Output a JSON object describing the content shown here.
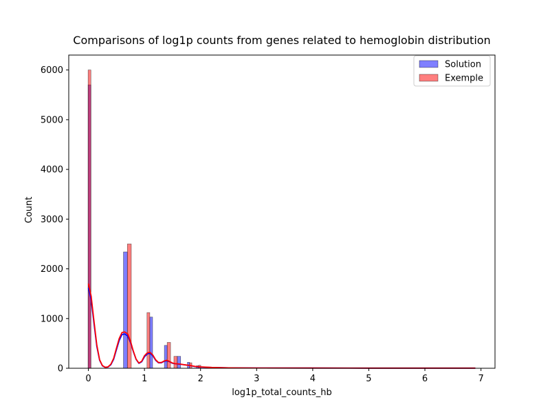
{
  "chart_data": {
    "type": "bar",
    "title": "Comparisons of log1p counts from genes related to hemoglobin distribution",
    "xlabel": "log1p_total_counts_hb",
    "ylabel": "Count",
    "xlim": [
      -0.35,
      7.25
    ],
    "ylim": [
      0,
      6300
    ],
    "xticks": [
      "0",
      "1",
      "2",
      "3",
      "4",
      "5",
      "6",
      "7"
    ],
    "yticks": [
      "0",
      "1000",
      "2000",
      "3000",
      "4000",
      "5000",
      "6000"
    ],
    "grid": false,
    "legend_position": "top-right",
    "series": [
      {
        "name": "Solution",
        "color": "#0000ff",
        "bars": [
          {
            "x0": -0.005,
            "x1": 0.045,
            "y": 5700
          },
          {
            "x0": 0.625,
            "x1": 0.695,
            "y": 2340
          },
          {
            "x0": 1.095,
            "x1": 1.145,
            "y": 1030
          },
          {
            "x0": 1.355,
            "x1": 1.405,
            "y": 460
          },
          {
            "x0": 1.585,
            "x1": 1.645,
            "y": 240
          },
          {
            "x0": 1.765,
            "x1": 1.805,
            "y": 120
          },
          {
            "x0": 1.925,
            "x1": 1.965,
            "y": 50
          }
        ],
        "kde": {
          "x": [
            0,
            0.05,
            0.1,
            0.15,
            0.2,
            0.25,
            0.3,
            0.35,
            0.4,
            0.45,
            0.5,
            0.55,
            0.6,
            0.65,
            0.7,
            0.75,
            0.8,
            0.85,
            0.9,
            0.95,
            1.0,
            1.05,
            1.1,
            1.15,
            1.2,
            1.25,
            1.3,
            1.35,
            1.4,
            1.45,
            1.5,
            1.55,
            1.6,
            1.65,
            1.7,
            1.8,
            1.9,
            2.0,
            2.2,
            2.5,
            3.0,
            4.0,
            5.0,
            6.0,
            6.9
          ],
          "y": [
            1620,
            1380,
            900,
            440,
            160,
            50,
            20,
            25,
            70,
            180,
            370,
            560,
            680,
            690,
            650,
            520,
            340,
            180,
            100,
            130,
            230,
            290,
            300,
            250,
            160,
            110,
            110,
            140,
            150,
            130,
            100,
            90,
            85,
            80,
            70,
            55,
            35,
            25,
            15,
            8,
            5,
            4,
            3,
            3,
            3
          ]
        }
      },
      {
        "name": "Exemple",
        "color": "#ff0000",
        "bars": [
          {
            "x0": -0.005,
            "x1": 0.045,
            "y": 6000
          },
          {
            "x0": 0.695,
            "x1": 0.765,
            "y": 2500
          },
          {
            "x0": 1.045,
            "x1": 1.095,
            "y": 1120
          },
          {
            "x0": 1.405,
            "x1": 1.465,
            "y": 520
          },
          {
            "x0": 1.525,
            "x1": 1.585,
            "y": 240
          },
          {
            "x0": 1.805,
            "x1": 1.845,
            "y": 110
          },
          {
            "x0": 1.965,
            "x1": 2.005,
            "y": 60
          }
        ],
        "kde": {
          "x": [
            0,
            0.05,
            0.1,
            0.15,
            0.2,
            0.25,
            0.3,
            0.35,
            0.4,
            0.45,
            0.5,
            0.55,
            0.6,
            0.65,
            0.7,
            0.75,
            0.8,
            0.85,
            0.9,
            0.95,
            1.0,
            1.05,
            1.1,
            1.15,
            1.2,
            1.25,
            1.3,
            1.35,
            1.4,
            1.45,
            1.5,
            1.55,
            1.6,
            1.65,
            1.7,
            1.8,
            1.9,
            2.0,
            2.2,
            2.5,
            3.0,
            4.0,
            5.0,
            6.0,
            6.9
          ],
          "y": [
            1700,
            1450,
            950,
            470,
            170,
            55,
            20,
            28,
            80,
            200,
            400,
            600,
            720,
            730,
            690,
            550,
            350,
            185,
            105,
            140,
            250,
            310,
            320,
            265,
            170,
            115,
            115,
            145,
            160,
            135,
            105,
            92,
            88,
            82,
            72,
            58,
            38,
            27,
            16,
            9,
            5,
            4,
            3,
            3,
            3
          ]
        }
      }
    ]
  }
}
